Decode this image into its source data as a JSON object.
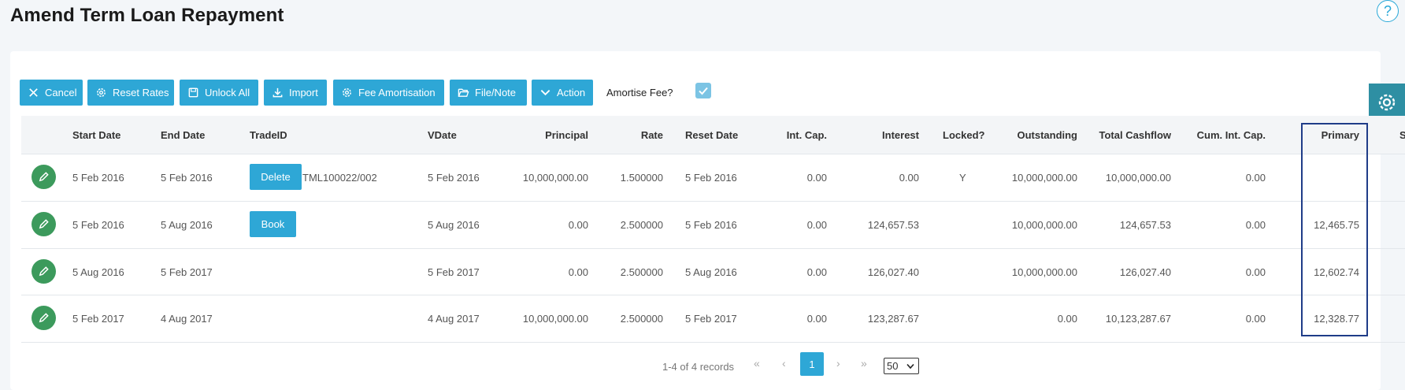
{
  "page": {
    "title": "Amend Term Loan Repayment"
  },
  "toolbar": {
    "buttons": [
      {
        "label": "Cancel",
        "icon": "close-icon"
      },
      {
        "label": "Reset Rates",
        "icon": "gear-icon"
      },
      {
        "label": "Unlock All",
        "icon": "save-icon"
      },
      {
        "label": "Import",
        "icon": "download-icon"
      },
      {
        "label": "Fee Amortisation",
        "icon": "gear-icon"
      },
      {
        "label": "File/Note",
        "icon": "folder-open-icon"
      },
      {
        "label": "Action",
        "icon": "chevron-down-icon"
      }
    ],
    "amortise_fee_label": "Amortise Fee?",
    "amortise_fee_checked": true
  },
  "table": {
    "columns": [
      "Start Date",
      "End Date",
      "TradeID",
      "VDate",
      "Principal",
      "Rate",
      "Reset Date",
      "Int. Cap.",
      "Interest",
      "Locked?",
      "Outstanding",
      "Total Cashflow",
      "Cum. Int. Cap.",
      "Primary",
      "S"
    ],
    "rows": [
      {
        "start": "5 Feb 2016",
        "end": "5 Feb 2016",
        "action": "Delete",
        "tradeid": "TML100022/002",
        "vdate": "5 Feb 2016",
        "principal": "10,000,000.00",
        "rate": "1.500000",
        "reset": "5 Feb 2016",
        "intcap": "0.00",
        "interest": "0.00",
        "locked": "Y",
        "outstanding": "10,000,000.00",
        "total": "10,000,000.00",
        "cum": "0.00",
        "primary": ""
      },
      {
        "start": "5 Feb 2016",
        "end": "5 Aug 2016",
        "action": "Book",
        "tradeid": "",
        "vdate": "5 Aug 2016",
        "principal": "0.00",
        "rate": "2.500000",
        "reset": "5 Feb 2016",
        "intcap": "0.00",
        "interest": "124,657.53",
        "locked": "",
        "outstanding": "10,000,000.00",
        "total": "124,657.53",
        "cum": "0.00",
        "primary": "12,465.75"
      },
      {
        "start": "5 Aug 2016",
        "end": "5 Feb 2017",
        "action": "",
        "tradeid": "",
        "vdate": "5 Feb 2017",
        "principal": "0.00",
        "rate": "2.500000",
        "reset": "5 Aug 2016",
        "intcap": "0.00",
        "interest": "126,027.40",
        "locked": "",
        "outstanding": "10,000,000.00",
        "total": "126,027.40",
        "cum": "0.00",
        "primary": "12,602.74"
      },
      {
        "start": "5 Feb 2017",
        "end": "4 Aug 2017",
        "action": "",
        "tradeid": "",
        "vdate": "4 Aug 2017",
        "principal": "10,000,000.00",
        "rate": "2.500000",
        "reset": "5 Feb 2017",
        "intcap": "0.00",
        "interest": "123,287.67",
        "locked": "",
        "outstanding": "0.00",
        "total": "10,123,287.67",
        "cum": "0.00",
        "primary": "12,328.77"
      }
    ]
  },
  "pager": {
    "summary": "1-4 of 4 records",
    "current_page": "1",
    "page_size": "50"
  },
  "colors": {
    "accent": "#2ea7d6",
    "edit": "#3c9a5c",
    "highlight_border": "#1f3c88",
    "settings_tab": "#2e8fa3"
  }
}
